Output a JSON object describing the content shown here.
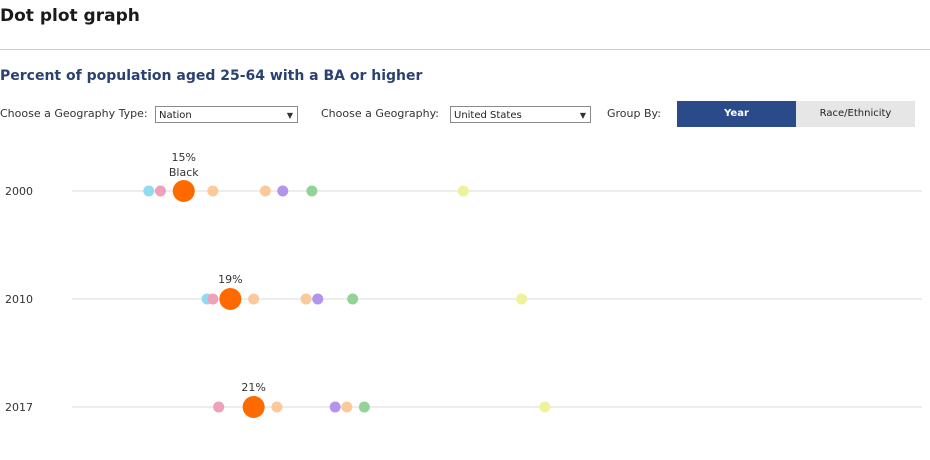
{
  "page": {
    "title": "Dot plot graph",
    "subtitle": "Percent of population aged 25-64 with a BA or higher"
  },
  "controls": {
    "geo_type_label": "Choose a Geography Type:",
    "geo_type_value": "Nation",
    "geo_label": "Choose a Geography:",
    "geo_value": "United States",
    "group_label": "Group By:",
    "group_options": [
      "Year",
      "Race/Ethnicity"
    ],
    "group_selected": "Year"
  },
  "colors": {
    "highlight": "#ff6a00",
    "teal": "#8fdcf0",
    "pink": "#f0a0b8",
    "peach": "#fbc99a",
    "purple": "#b394ec",
    "green": "#93d396",
    "lime": "#eef39a",
    "gridline": "#e2e2e2",
    "accent_button": "#2b4a8a"
  },
  "chart_data": {
    "type": "scatter",
    "title": "Percent of population aged 25-64 with a BA or higher",
    "categories": [
      "2000",
      "2010",
      "2017"
    ],
    "xlim": [
      0,
      100
    ],
    "grid": "horizontal lines per row",
    "highlight_series": "Black",
    "series": [
      {
        "values": [
          12,
          17,
          18
        ],
        "color": "teal"
      },
      {
        "values": [
          13,
          17.5,
          18
        ],
        "color": "pink"
      },
      {
        "name": "Black",
        "values": [
          15,
          19,
          21
        ],
        "color": "highlight",
        "highlight": true
      },
      {
        "values": [
          17.5,
          21,
          23
        ],
        "color": "peach"
      },
      {
        "values": [
          22,
          25.5,
          29
        ],
        "color": "peach"
      },
      {
        "values": [
          23.5,
          26.5,
          28
        ],
        "color": "purple"
      },
      {
        "values": [
          26,
          29.5,
          30.5
        ],
        "color": "green"
      },
      {
        "values": [
          39,
          44,
          46
        ],
        "color": "lime"
      }
    ],
    "annotations": [
      {
        "category": "2000",
        "text": "15%",
        "subtext": "Black"
      },
      {
        "category": "2010",
        "text": "19%"
      },
      {
        "category": "2017",
        "text": "21%"
      }
    ]
  }
}
